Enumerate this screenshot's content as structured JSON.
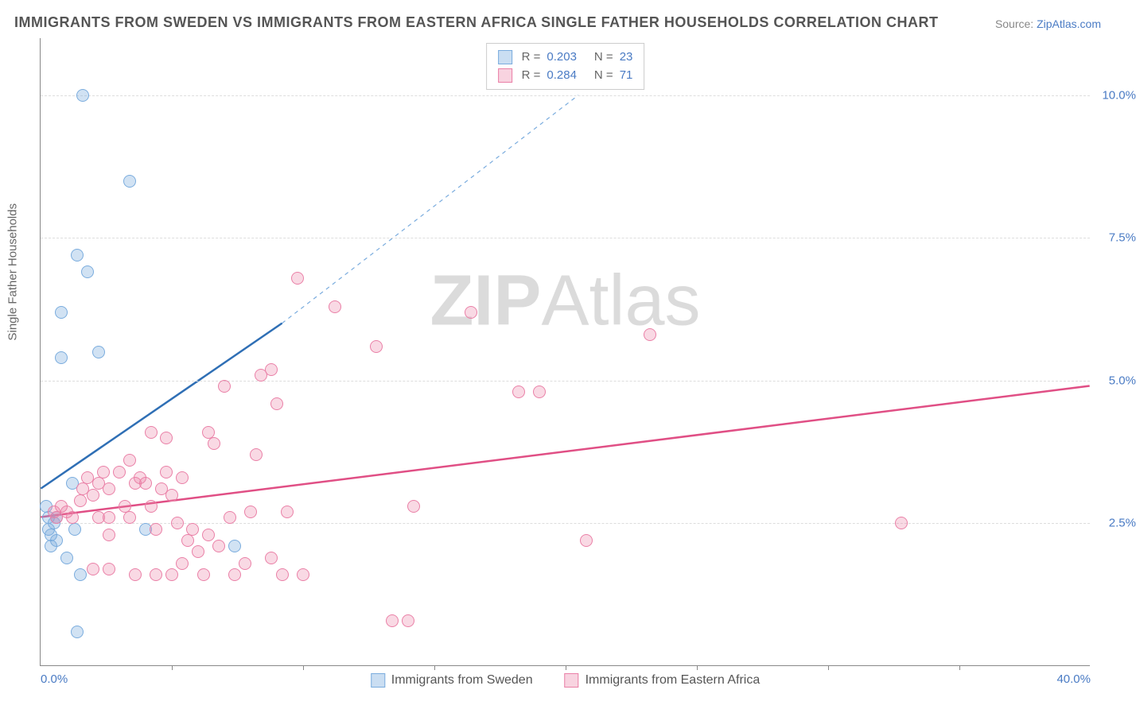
{
  "title": "IMMIGRANTS FROM SWEDEN VS IMMIGRANTS FROM EASTERN AFRICA SINGLE FATHER HOUSEHOLDS CORRELATION CHART",
  "source_prefix": "Source: ",
  "source_link": "ZipAtlas.com",
  "y_axis_label": "Single Father Households",
  "watermark_bold": "ZIP",
  "watermark_rest": "Atlas",
  "chart": {
    "type": "scatter",
    "xlim": [
      0,
      40
    ],
    "ylim": [
      0,
      11
    ],
    "x_ticks": [
      {
        "pos": 0,
        "label": "0.0%"
      },
      {
        "pos": 40,
        "label": "40.0%"
      }
    ],
    "x_tick_marks": [
      5,
      10,
      15,
      20,
      25,
      30,
      35
    ],
    "y_ticks": [
      {
        "pos": 2.5,
        "label": "2.5%"
      },
      {
        "pos": 5.0,
        "label": "5.0%"
      },
      {
        "pos": 7.5,
        "label": "7.5%"
      },
      {
        "pos": 10.0,
        "label": "10.0%"
      }
    ],
    "background_color": "#ffffff",
    "grid_color": "#dddddd",
    "marker_size": 16,
    "series": [
      {
        "name": "Immigrants from Sweden",
        "color": "#7aacde",
        "fill": "rgba(122,172,222,0.35)",
        "R": "0.203",
        "N": "23",
        "trend": {
          "x1": 0,
          "y1": 3.1,
          "x2": 9.2,
          "y2": 6.0,
          "dashed_to": {
            "x": 20.5,
            "y": 10.0
          },
          "width": 2.5
        },
        "points": [
          [
            1.6,
            10.0
          ],
          [
            3.4,
            8.5
          ],
          [
            1.4,
            7.2
          ],
          [
            1.8,
            6.9
          ],
          [
            0.8,
            6.2
          ],
          [
            0.8,
            5.4
          ],
          [
            2.2,
            5.5
          ],
          [
            0.2,
            2.8
          ],
          [
            0.3,
            2.6
          ],
          [
            0.5,
            2.5
          ],
          [
            0.4,
            2.3
          ],
          [
            0.6,
            2.2
          ],
          [
            0.4,
            2.1
          ],
          [
            0.3,
            2.4
          ],
          [
            0.6,
            2.6
          ],
          [
            1.2,
            3.2
          ],
          [
            1.3,
            2.4
          ],
          [
            4.0,
            2.4
          ],
          [
            7.4,
            2.1
          ],
          [
            1.5,
            1.6
          ],
          [
            1.0,
            1.9
          ],
          [
            1.4,
            0.6
          ]
        ]
      },
      {
        "name": "Immigrants from Eastern Africa",
        "color": "#ea80a7",
        "fill": "rgba(234,128,167,0.3)",
        "R": "0.284",
        "N": "71",
        "trend": {
          "x1": 0,
          "y1": 2.6,
          "x2": 40,
          "y2": 4.9,
          "width": 2.5
        },
        "points": [
          [
            9.8,
            6.8
          ],
          [
            11.2,
            6.3
          ],
          [
            16.4,
            6.2
          ],
          [
            23.2,
            5.8
          ],
          [
            12.8,
            5.6
          ],
          [
            18.2,
            4.8
          ],
          [
            19.0,
            4.8
          ],
          [
            8.8,
            5.2
          ],
          [
            8.4,
            5.1
          ],
          [
            9.0,
            4.6
          ],
          [
            7.0,
            4.9
          ],
          [
            6.4,
            4.1
          ],
          [
            6.6,
            3.9
          ],
          [
            8.2,
            3.7
          ],
          [
            5.4,
            3.3
          ],
          [
            14.2,
            2.8
          ],
          [
            13.4,
            0.8
          ],
          [
            14.0,
            0.8
          ],
          [
            0.5,
            2.7
          ],
          [
            0.6,
            2.6
          ],
          [
            0.8,
            2.8
          ],
          [
            1.0,
            2.7
          ],
          [
            1.2,
            2.6
          ],
          [
            1.5,
            2.9
          ],
          [
            1.6,
            3.1
          ],
          [
            1.8,
            3.3
          ],
          [
            2.0,
            3.0
          ],
          [
            2.2,
            3.2
          ],
          [
            2.2,
            2.6
          ],
          [
            2.4,
            3.4
          ],
          [
            2.6,
            3.1
          ],
          [
            2.6,
            2.6
          ],
          [
            2.6,
            2.3
          ],
          [
            3.0,
            3.4
          ],
          [
            3.2,
            2.8
          ],
          [
            3.4,
            2.6
          ],
          [
            3.6,
            3.2
          ],
          [
            3.8,
            3.3
          ],
          [
            3.4,
            3.6
          ],
          [
            4.0,
            3.2
          ],
          [
            4.2,
            2.8
          ],
          [
            4.4,
            2.4
          ],
          [
            4.6,
            3.1
          ],
          [
            4.8,
            3.4
          ],
          [
            5.0,
            3.0
          ],
          [
            5.2,
            2.5
          ],
          [
            5.6,
            2.2
          ],
          [
            5.8,
            2.4
          ],
          [
            6.0,
            2.0
          ],
          [
            6.4,
            2.3
          ],
          [
            6.8,
            2.1
          ],
          [
            2.0,
            1.7
          ],
          [
            2.6,
            1.7
          ],
          [
            3.6,
            1.6
          ],
          [
            4.4,
            1.6
          ],
          [
            5.0,
            1.6
          ],
          [
            5.4,
            1.8
          ],
          [
            6.2,
            1.6
          ],
          [
            7.4,
            1.6
          ],
          [
            7.8,
            1.8
          ],
          [
            8.8,
            1.9
          ],
          [
            9.2,
            1.6
          ],
          [
            10.0,
            1.6
          ],
          [
            7.2,
            2.6
          ],
          [
            8.0,
            2.7
          ],
          [
            9.4,
            2.7
          ],
          [
            20.8,
            2.2
          ],
          [
            32.8,
            2.5
          ],
          [
            4.2,
            4.1
          ],
          [
            4.8,
            4.0
          ]
        ]
      }
    ]
  },
  "legend_top": {
    "r_label": "R =",
    "n_label": "N ="
  }
}
